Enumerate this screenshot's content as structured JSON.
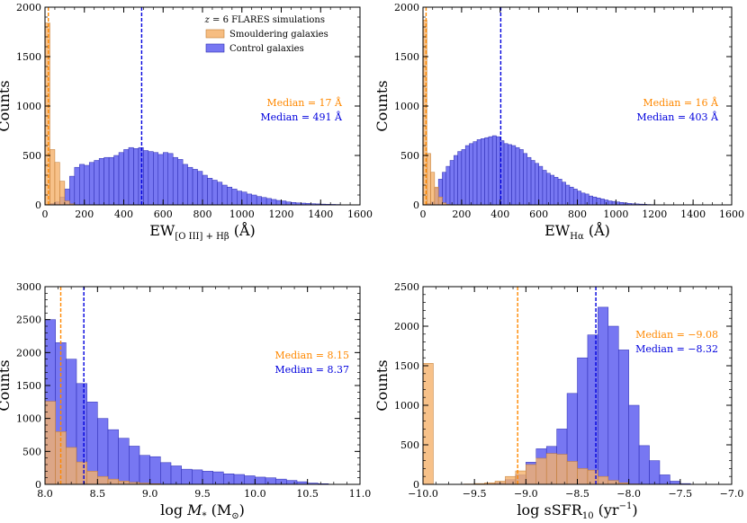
{
  "colors": {
    "control": "#6464f0",
    "smoulder": "#f5b26b",
    "overlap": "#a07060",
    "control_median": "#0000dd",
    "smoulder_median": "#ff8800"
  },
  "legend": {
    "title": "z = 6 FLARES simulations",
    "smoulder": "Smouldering galaxies",
    "control": "Control galaxies",
    "placement": "top-right of top-left panel"
  },
  "chart_data": [
    {
      "type": "bar",
      "panel": "EW O III + Hbeta",
      "xlabel": "EW[O III]+Hβ (Å)",
      "ylabel": "Counts",
      "xlim": [
        0,
        1600
      ],
      "ylim": [
        0,
        2000
      ],
      "xticks": [
        0,
        200,
        400,
        600,
        800,
        1000,
        1200,
        1400,
        1600
      ],
      "yticks": [
        0,
        500,
        1000,
        1500,
        2000
      ],
      "ytick_labels": [
        "0",
        "500",
        "1000",
        "1500",
        "2000"
      ],
      "bin_width": 25,
      "series": [
        {
          "name": "Smouldering galaxies",
          "bin_start": 0,
          "values": [
            1840,
            560,
            430,
            240,
            40,
            10
          ]
        },
        {
          "name": "Control galaxies",
          "bin_start": 0,
          "values": [
            5,
            15,
            30,
            80,
            160,
            290,
            380,
            410,
            400,
            430,
            450,
            470,
            480,
            480,
            500,
            530,
            560,
            580,
            570,
            580,
            550,
            540,
            530,
            510,
            530,
            520,
            480,
            460,
            410,
            380,
            360,
            340,
            300,
            270,
            250,
            230,
            200,
            180,
            160,
            140,
            130,
            110,
            100,
            85,
            75,
            65,
            55,
            45,
            40,
            30,
            25,
            20,
            18,
            15,
            12,
            10,
            8,
            6,
            5,
            4
          ]
        }
      ],
      "medians": [
        {
          "series": "Smouldering galaxies",
          "value": 17,
          "label": "Median = 17 Å"
        },
        {
          "series": "Control galaxies",
          "value": 491,
          "label": "Median = 491 Å"
        }
      ]
    },
    {
      "type": "bar",
      "panel": "EW Halpha",
      "xlabel": "EWHα (Å)",
      "ylabel": "",
      "xlim": [
        0,
        1600
      ],
      "ylim": [
        0,
        2000
      ],
      "xticks": [
        0,
        200,
        400,
        600,
        800,
        1000,
        1200,
        1400,
        1600
      ],
      "yticks": [
        0,
        500,
        1000,
        1500,
        2000
      ],
      "ytick_labels": [
        "0",
        "500",
        "1000",
        "1500",
        "2000"
      ],
      "bin_width": 20,
      "series": [
        {
          "name": "Smouldering galaxies",
          "bin_start": 0,
          "values": [
            1870,
            520,
            330,
            180,
            80,
            20,
            5
          ]
        },
        {
          "name": "Control galaxies",
          "bin_start": 0,
          "values": [
            5,
            15,
            30,
            170,
            260,
            330,
            390,
            450,
            500,
            540,
            560,
            600,
            620,
            640,
            660,
            670,
            680,
            690,
            700,
            690,
            650,
            620,
            610,
            600,
            580,
            560,
            520,
            480,
            450,
            420,
            390,
            350,
            320,
            300,
            280,
            260,
            230,
            200,
            180,
            160,
            140,
            120,
            110,
            90,
            80,
            70,
            60,
            50,
            40,
            35,
            30,
            25,
            20,
            15,
            12,
            10,
            8,
            6,
            4,
            3,
            2
          ]
        }
      ],
      "medians": [
        {
          "series": "Smouldering galaxies",
          "value": 16,
          "label": "Median = 16 Å"
        },
        {
          "series": "Control galaxies",
          "value": 403,
          "label": "Median = 403 Å"
        }
      ]
    },
    {
      "type": "bar",
      "panel": "stellar mass",
      "xlabel": "log M* (M⊙)",
      "ylabel": "Counts",
      "xlim": [
        8.0,
        11.0
      ],
      "ylim": [
        0,
        3000
      ],
      "xticks": [
        8.0,
        8.5,
        9.0,
        9.5,
        10.0,
        10.5,
        11.0
      ],
      "xtick_labels": [
        "8.0",
        "8.5",
        "9.0",
        "9.5",
        "10.0",
        "10.5",
        "11.0"
      ],
      "yticks": [
        0,
        500,
        1000,
        1500,
        2000,
        2500,
        3000
      ],
      "ytick_labels": [
        "0",
        "500",
        "1000",
        "1500",
        "2000",
        "2500",
        "3000"
      ],
      "bin_width": 0.1,
      "series": [
        {
          "name": "Smouldering galaxies",
          "bin_start": 8.0,
          "values": [
            1260,
            800,
            560,
            340,
            200,
            120,
            80,
            50,
            30,
            20,
            10
          ]
        },
        {
          "name": "Control galaxies",
          "bin_start": 8.0,
          "values": [
            2500,
            2150,
            1900,
            1530,
            1250,
            1000,
            830,
            700,
            580,
            440,
            420,
            330,
            280,
            230,
            220,
            200,
            190,
            160,
            150,
            130,
            110,
            100,
            80,
            60,
            40,
            20,
            10
          ]
        }
      ],
      "medians": [
        {
          "series": "Smouldering galaxies",
          "value": 8.15,
          "label": "Median = 8.15"
        },
        {
          "series": "Control galaxies",
          "value": 8.37,
          "label": "Median = 8.37"
        }
      ]
    },
    {
      "type": "bar",
      "panel": "specific star formation rate",
      "xlabel": "log sSFR10 (yr−1)",
      "ylabel": "Counts",
      "xlim": [
        -10.0,
        -7.0
      ],
      "ylim": [
        0,
        2500
      ],
      "xticks": [
        -10.0,
        -9.5,
        -9.0,
        -8.5,
        -8.0,
        -7.5,
        -7.0
      ],
      "xtick_labels": [
        "−10.0",
        "−9.5",
        "−9.0",
        "−8.5",
        "−8.0",
        "−7.5",
        "−7.0"
      ],
      "yticks": [
        0,
        500,
        1000,
        1500,
        2000,
        2500
      ],
      "ytick_labels": [
        "0",
        "500",
        "1000",
        "1500",
        "2000",
        "2500"
      ],
      "bin_width": 0.1,
      "series": [
        {
          "name": "Smouldering galaxies",
          "bin_start": -10.0,
          "values": [
            1530,
            0,
            0,
            0,
            5,
            10,
            20,
            40,
            100,
            170,
            250,
            330,
            390,
            380,
            290,
            200,
            180,
            100,
            50,
            20,
            5
          ]
        },
        {
          "name": "Control galaxies",
          "bin_start": -10.0,
          "values": [
            0,
            0,
            0,
            0,
            0,
            0,
            5,
            20,
            60,
            120,
            280,
            450,
            480,
            700,
            1150,
            1600,
            1890,
            2240,
            2000,
            1700,
            1000,
            490,
            300,
            120,
            40,
            10
          ]
        }
      ],
      "medians": [
        {
          "series": "Smouldering galaxies",
          "value": -9.08,
          "label": "Median = −9.08"
        },
        {
          "series": "Control galaxies",
          "value": -8.32,
          "label": "Median = −8.32"
        }
      ]
    }
  ]
}
